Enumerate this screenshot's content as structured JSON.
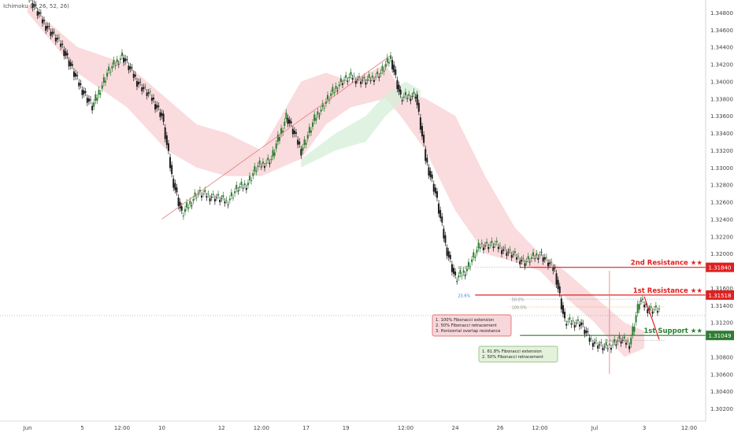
{
  "indicator_label": "Ichimoku (9, 26, 52, 26)",
  "colors": {
    "up": "#2e7d32",
    "down": "#1b1b1b",
    "resistance": "#e02020",
    "support": "#2e7d32",
    "cloud_bear": "#f8cfd3",
    "cloud_bull": "#d6efd8",
    "fib": "#8a8a8a",
    "price_axis_bg": "#ffffff"
  },
  "chart_data": {
    "type": "candlestick",
    "title": "",
    "xlabel": "",
    "ylabel": "",
    "ylim": [
      1.301,
      1.349
    ],
    "grid": false,
    "y_ticks": [
      "1.34800",
      "1.34600",
      "1.34400",
      "1.34200",
      "1.34000",
      "1.33800",
      "1.33600",
      "1.33400",
      "1.33200",
      "1.33000",
      "1.32800",
      "1.32600",
      "1.32400",
      "1.32200",
      "1.32000",
      "1.31600",
      "1.31400",
      "1.31200",
      "1.30800",
      "1.30600",
      "1.30400",
      "1.30200"
    ],
    "x_ticks": [
      "Jun",
      "5",
      "12:00",
      "10",
      "12",
      "12:00",
      "17",
      "19",
      "12:00",
      "24",
      "26",
      "12:00",
      "Jul",
      "3",
      "12:00"
    ],
    "price_path": [
      [
        0,
        1.35
      ],
      [
        3,
        1.347
      ],
      [
        7,
        1.344
      ],
      [
        10,
        1.34
      ],
      [
        13,
        1.337
      ],
      [
        16,
        1.341
      ],
      [
        19,
        1.343
      ],
      [
        22,
        1.34
      ],
      [
        25,
        1.338
      ],
      [
        27,
        1.336
      ],
      [
        29,
        1.329
      ],
      [
        31,
        1.3245
      ],
      [
        34,
        1.327
      ],
      [
        38,
        1.3265
      ],
      [
        40,
        1.326
      ],
      [
        42,
        1.3275
      ],
      [
        44,
        1.328
      ],
      [
        46,
        1.33
      ],
      [
        49,
        1.331
      ],
      [
        52,
        1.336
      ],
      [
        55,
        1.332
      ],
      [
        58,
        1.336
      ],
      [
        61,
        1.3385
      ],
      [
        63,
        1.34
      ],
      [
        65,
        1.3405
      ],
      [
        68,
        1.34
      ],
      [
        71,
        1.341
      ],
      [
        73,
        1.3428
      ],
      [
        75,
        1.338
      ],
      [
        78,
        1.3385
      ],
      [
        80,
        1.331
      ],
      [
        82,
        1.327
      ],
      [
        84,
        1.321
      ],
      [
        86,
        1.317
      ],
      [
        88,
        1.318
      ],
      [
        91,
        1.321
      ],
      [
        94,
        1.321
      ],
      [
        97,
        1.32
      ],
      [
        100,
        1.319
      ],
      [
        103,
        1.32
      ],
      [
        106,
        1.318
      ],
      [
        108,
        1.312
      ],
      [
        111,
        1.312
      ],
      [
        113,
        1.31
      ],
      [
        116,
        1.309
      ],
      [
        119,
        1.31
      ],
      [
        121,
        1.3095
      ],
      [
        123,
        1.3145
      ],
      [
        125,
        1.3135
      ],
      [
        127,
        1.3135
      ]
    ],
    "ichimoku_cloud_bearish": [
      [
        0,
        1.349,
        1.348
      ],
      [
        10,
        1.344,
        1.341
      ],
      [
        20,
        1.342,
        1.337
      ],
      [
        28,
        1.338,
        1.332
      ],
      [
        34,
        1.335,
        1.33
      ],
      [
        40,
        1.334,
        1.329
      ],
      [
        47,
        1.332,
        1.329
      ],
      [
        55,
        1.34,
        1.331
      ],
      [
        60,
        1.341,
        1.335
      ],
      [
        65,
        1.34,
        1.337
      ],
      [
        72,
        1.342,
        1.338
      ],
      [
        75,
        1.339,
        1.336
      ],
      [
        80,
        1.338,
        1.332
      ],
      [
        86,
        1.336,
        1.325
      ],
      [
        92,
        1.329,
        1.32
      ],
      [
        98,
        1.323,
        1.319
      ],
      [
        103,
        1.32,
        1.318
      ],
      [
        108,
        1.318,
        1.315
      ],
      [
        114,
        1.315,
        1.312
      ],
      [
        120,
        1.312,
        1.308
      ],
      [
        124,
        1.311,
        1.309
      ]
    ],
    "ichimoku_cloud_bullish": [
      [
        55,
        1.331,
        1.33
      ],
      [
        62,
        1.334,
        1.332
      ],
      [
        68,
        1.336,
        1.333
      ],
      [
        72,
        1.3385,
        1.336
      ],
      [
        76,
        1.34,
        1.338
      ],
      [
        79,
        1.339,
        1.338
      ]
    ],
    "levels": [
      {
        "name": "2nd Resistance ★★",
        "value": 1.3184,
        "label": "1.31840",
        "color": "resistance"
      },
      {
        "name": "1st Resistance ★★",
        "value": 1.31518,
        "label": "1.31518",
        "color": "resistance"
      },
      {
        "name": "1st Support ★★",
        "value": 1.31049,
        "label": "1.31049",
        "color": "support"
      }
    ],
    "fib_labels": [
      "61.8%",
      "23.6%",
      "50.0%",
      "100.0%",
      "50.0%"
    ],
    "current_price": 1.3128,
    "annotations": {
      "resistance_box": [
        "1. 100% Fibonacci extension",
        "2. 50% Fibonacci retracement",
        "3. Horizontal overlap resistance"
      ],
      "support_box": [
        "1. 61.8% Fibonacci extension",
        "2. 50% Fibonacci retracement"
      ]
    }
  }
}
